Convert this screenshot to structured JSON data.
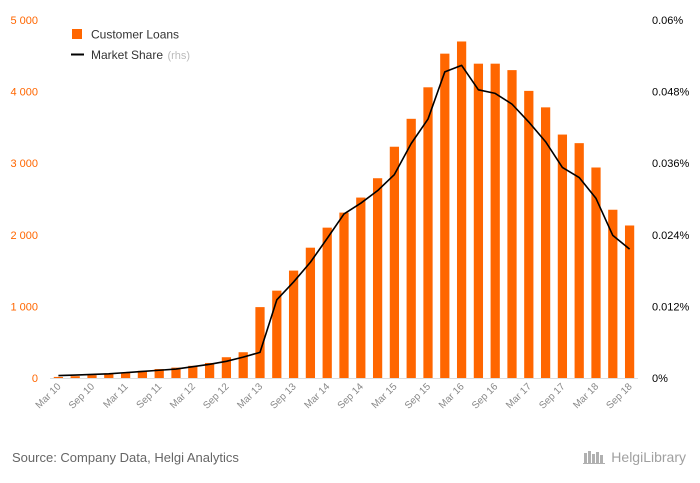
{
  "chart_data": {
    "type": "bar",
    "categories": [
      "Mar 10",
      "Jun 10",
      "Sep 10",
      "Dec 10",
      "Mar 11",
      "Jun 11",
      "Sep 11",
      "Dec 11",
      "Mar 12",
      "Jun 12",
      "Sep 12",
      "Dec 12",
      "Mar 13",
      "Jun 13",
      "Sep 13",
      "Dec 13",
      "Mar 14",
      "Jun 14",
      "Sep 14",
      "Dec 14",
      "Mar 15",
      "Jun 15",
      "Sep 15",
      "Dec 15",
      "Mar 16",
      "Jun 16",
      "Sep 16",
      "Dec 16",
      "Mar 17",
      "Jun 17",
      "Sep 17",
      "Dec 17",
      "Mar 18",
      "Jun 18",
      "Sep 18"
    ],
    "x_tick_labels": [
      "Mar 10",
      "Sep 10",
      "Mar 11",
      "Sep 11",
      "Mar 12",
      "Sep 12",
      "Mar 13",
      "Sep 13",
      "Mar 14",
      "Sep 14",
      "Mar 15",
      "Sep 15",
      "Mar 16",
      "Sep 16",
      "Mar 17",
      "Sep 17",
      "Mar 18",
      "Sep 18"
    ],
    "series": [
      {
        "name": "Customer Loans",
        "axis": "left",
        "kind": "bar",
        "color": "#ff6600",
        "values": [
          15,
          25,
          40,
          55,
          75,
          100,
          125,
          145,
          170,
          210,
          290,
          360,
          990,
          1220,
          1500,
          1820,
          2100,
          2310,
          2520,
          2790,
          3230,
          3620,
          4060,
          4530,
          4700,
          4390,
          4390,
          4300,
          4010,
          3780,
          3400,
          3280,
          2940,
          2350,
          2130
        ]
      },
      {
        "name": "Market Share",
        "name_suffix": "(rhs)",
        "axis": "right",
        "kind": "line",
        "color": "#000000",
        "values": [
          0.0004,
          0.0005,
          0.0006,
          0.0007,
          0.0009,
          0.0011,
          0.0013,
          0.0015,
          0.0019,
          0.0023,
          0.0028,
          0.0035,
          0.0043,
          0.0131,
          0.0161,
          0.0194,
          0.0234,
          0.0275,
          0.0293,
          0.0314,
          0.0341,
          0.0393,
          0.0434,
          0.0513,
          0.0524,
          0.0483,
          0.0477,
          0.0459,
          0.0429,
          0.0396,
          0.0353,
          0.0336,
          0.0301,
          0.0239,
          0.0216
        ]
      }
    ],
    "y_left": {
      "ylim": [
        0,
        5000
      ],
      "ticks": [
        "0",
        "1 000",
        "2 000",
        "3 000",
        "4 000",
        "5 000"
      ],
      "color": "#ff6600"
    },
    "y_right": {
      "ylim": [
        0,
        0.06
      ],
      "ticks": [
        "0%",
        "0.012%",
        "0.024%",
        "0.036%",
        "0.048%",
        "0.06%"
      ],
      "color": "#000000"
    },
    "legend_position": "top-left",
    "grid": false
  },
  "footer": {
    "source": "Source: Company Data, Helgi Analytics",
    "brand": "HelgiLibrary",
    "brand_icon": "library-icon"
  }
}
